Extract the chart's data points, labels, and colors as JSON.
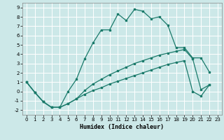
{
  "xlabel": "Humidex (Indice chaleur)",
  "background_color": "#cce8e8",
  "grid_color": "#ffffff",
  "line_color": "#1a7a6a",
  "xlim": [
    -0.5,
    23.5
  ],
  "ylim": [
    -2.5,
    9.5
  ],
  "xticks": [
    0,
    1,
    2,
    3,
    4,
    5,
    6,
    7,
    8,
    9,
    10,
    11,
    12,
    13,
    14,
    15,
    16,
    17,
    18,
    19,
    20,
    21,
    22,
    23
  ],
  "yticks": [
    -2,
    -1,
    0,
    1,
    2,
    3,
    4,
    5,
    6,
    7,
    8,
    9
  ],
  "line1_x": [
    0,
    1,
    2,
    3,
    4,
    5,
    6,
    7,
    8,
    9,
    10,
    11,
    12,
    13,
    14,
    15,
    16,
    17,
    18,
    19,
    20,
    21,
    22
  ],
  "line1_y": [
    1.0,
    -0.1,
    -1.1,
    -1.7,
    -1.7,
    0.0,
    1.3,
    3.5,
    5.2,
    6.6,
    6.6,
    8.3,
    7.6,
    8.8,
    8.6,
    7.8,
    8.0,
    7.1,
    4.7,
    4.7,
    3.6,
    3.6,
    2.1
  ],
  "line2_x": [
    0,
    1,
    2,
    3,
    4,
    5,
    6,
    7,
    8,
    9,
    10,
    11,
    12,
    13,
    14,
    15,
    16,
    17,
    18,
    19,
    20,
    21,
    22
  ],
  "line2_y": [
    1.0,
    -0.1,
    -1.1,
    -1.7,
    -1.7,
    -1.3,
    -0.8,
    0.1,
    0.8,
    1.3,
    1.8,
    2.2,
    2.6,
    3.0,
    3.3,
    3.6,
    3.9,
    4.1,
    4.3,
    4.5,
    3.5,
    0.2,
    0.7
  ],
  "line3_x": [
    0,
    1,
    2,
    3,
    4,
    5,
    6,
    7,
    8,
    9,
    10,
    11,
    12,
    13,
    14,
    15,
    16,
    17,
    18,
    19,
    20,
    21,
    22
  ],
  "line3_y": [
    1.0,
    -0.1,
    -1.1,
    -1.7,
    -1.7,
    -1.3,
    -0.8,
    -0.3,
    0.1,
    0.4,
    0.8,
    1.1,
    1.4,
    1.7,
    2.0,
    2.3,
    2.6,
    2.9,
    3.1,
    3.3,
    0.0,
    -0.5,
    0.7
  ]
}
